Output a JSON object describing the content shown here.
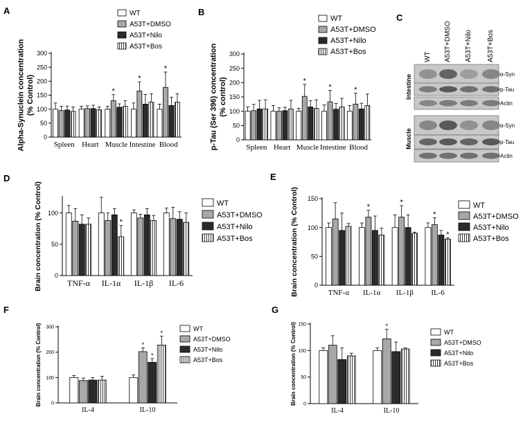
{
  "colors": {
    "WT": "#ffffff",
    "A53T+DMSO": "#a8a8a8",
    "A53T+Nilo": "#2b2b2b",
    "A53T+Bos": "#ffffff"
  },
  "chart_data": [
    {
      "id": "A",
      "type": "bar",
      "panel_label": "A",
      "ylabel": "Alpha-Synuclein concentration\n(% Control)",
      "ylim": [
        0,
        300
      ],
      "yticks": [
        0,
        50,
        100,
        150,
        200,
        250,
        300
      ],
      "categories": [
        "Spleen",
        "Heart",
        "Muscle",
        "Intestine",
        "Blood"
      ],
      "series": [
        {
          "name": "WT",
          "values": [
            100,
            100,
            100,
            100,
            100
          ],
          "errors": [
            22,
            10,
            10,
            22,
            18
          ]
        },
        {
          "name": "A53T+DMSO",
          "values": [
            95,
            102,
            130,
            165,
            178
          ],
          "errors": [
            15,
            10,
            22,
            33,
            55
          ]
        },
        {
          "name": "A53T+Nilo",
          "values": [
            97,
            102,
            107,
            118,
            113
          ],
          "errors": [
            14,
            12,
            12,
            35,
            30
          ]
        },
        {
          "name": "A53T+Bos",
          "values": [
            92,
            98,
            110,
            125,
            125
          ],
          "errors": [
            16,
            10,
            20,
            30,
            30
          ]
        }
      ],
      "significance": [
        {
          "category": "Muscle",
          "series": "A53T+DMSO"
        },
        {
          "category": "Intestine",
          "series": "A53T+DMSO"
        },
        {
          "category": "Blood",
          "series": "A53T+DMSO"
        }
      ],
      "legend": "top-right"
    },
    {
      "id": "B",
      "type": "bar",
      "panel_label": "B",
      "ylabel": "p-Tau (Ser 396) concentration\n(% control)",
      "ylim": [
        0,
        300
      ],
      "yticks": [
        0,
        50,
        100,
        150,
        200,
        250,
        300
      ],
      "categories": [
        "Spleen",
        "Heart",
        "Muscle",
        "Intestine",
        "Blood"
      ],
      "series": [
        {
          "name": "WT",
          "values": [
            100,
            100,
            100,
            100,
            100
          ],
          "errors": [
            15,
            20,
            10,
            22,
            20
          ]
        },
        {
          "name": "A53T+DMSO",
          "values": [
            102,
            100,
            152,
            133,
            125
          ],
          "errors": [
            22,
            12,
            42,
            40,
            38
          ]
        },
        {
          "name": "A53T+Nilo",
          "values": [
            108,
            102,
            115,
            107,
            108
          ],
          "errors": [
            30,
            12,
            22,
            20,
            20
          ]
        },
        {
          "name": "A53T+Bos",
          "values": [
            108,
            108,
            110,
            115,
            120
          ],
          "errors": [
            32,
            30,
            30,
            30,
            40
          ]
        }
      ],
      "significance": [
        {
          "category": "Muscle",
          "series": "A53T+DMSO"
        },
        {
          "category": "Intestine",
          "series": "A53T+DMSO"
        },
        {
          "category": "Blood",
          "series": "A53T+DMSO"
        }
      ],
      "legend": "top-right"
    },
    {
      "id": "D",
      "type": "bar",
      "panel_label": "D",
      "ylabel": "Brain concentration (% Control)",
      "ylim": [
        0,
        125
      ],
      "yticks": [
        0,
        50,
        100
      ],
      "categories": [
        "TNF-α",
        "IL-1α",
        "IL-1β",
        "IL-6"
      ],
      "series": [
        {
          "name": "WT",
          "values": [
            100,
            100,
            100,
            100
          ],
          "errors": [
            12,
            25,
            5,
            8
          ]
        },
        {
          "name": "A53T+DMSO",
          "values": [
            87,
            88,
            92,
            91
          ],
          "errors": [
            20,
            12,
            6,
            18
          ]
        },
        {
          "name": "A53T+Nilo",
          "values": [
            82,
            97,
            97,
            90
          ],
          "errors": [
            15,
            10,
            10,
            12
          ]
        },
        {
          "name": "A53T+Bos",
          "values": [
            82,
            62,
            88,
            85
          ],
          "errors": [
            10,
            18,
            8,
            15
          ]
        }
      ],
      "significance": [
        {
          "category": "IL-1α",
          "series": "A53T+Bos"
        }
      ],
      "legend": "right"
    },
    {
      "id": "E",
      "type": "bar",
      "panel_label": "E",
      "ylabel": "Brain concentration (% Control)",
      "ylim": [
        0,
        150
      ],
      "yticks": [
        0,
        50,
        100,
        150
      ],
      "categories": [
        "TNF-α",
        "IL-1α",
        "IL-1β",
        "IL-6"
      ],
      "series": [
        {
          "name": "WT",
          "values": [
            100,
            100,
            100,
            100
          ],
          "errors": [
            8,
            8,
            22,
            8
          ]
        },
        {
          "name": "A53T+DMSO",
          "values": [
            115,
            118,
            118,
            105
          ],
          "errors": [
            28,
            12,
            20,
            12
          ]
        },
        {
          "name": "A53T+Nilo",
          "values": [
            95,
            95,
            100,
            87
          ],
          "errors": [
            30,
            25,
            22,
            8
          ]
        },
        {
          "name": "A53T+Bos",
          "values": [
            102,
            87,
            90,
            80
          ],
          "errors": [
            5,
            12,
            2,
            2
          ]
        }
      ],
      "significance": [
        {
          "category": "IL-1α",
          "series": "A53T+DMSO"
        },
        {
          "category": "IL-1β",
          "series": "A53T+DMSO"
        },
        {
          "category": "IL-6",
          "series": "A53T+DMSO"
        },
        {
          "category": "IL-6",
          "series": "A53T+Bos"
        }
      ],
      "legend": "right"
    },
    {
      "id": "F",
      "type": "bar",
      "panel_label": "F",
      "ylabel": "Brain concentration (% Control)",
      "ylim": [
        0,
        300
      ],
      "yticks": [
        0,
        100,
        200,
        300
      ],
      "categories": [
        "IL-4",
        "IL-10"
      ],
      "series": [
        {
          "name": "WT",
          "values": [
            100,
            100
          ],
          "errors": [
            8,
            10
          ]
        },
        {
          "name": "A53T+DMSO",
          "values": [
            88,
            202
          ],
          "errors": [
            10,
            15
          ]
        },
        {
          "name": "A53T+Nilo",
          "values": [
            90,
            160
          ],
          "errors": [
            10,
            15
          ]
        },
        {
          "name": "A53T+Bos",
          "values": [
            90,
            228
          ],
          "errors": [
            15,
            35
          ]
        }
      ],
      "significance": [
        {
          "category": "IL-10",
          "series": "A53T+DMSO"
        },
        {
          "category": "IL-10",
          "series": "A53T+Nilo"
        },
        {
          "category": "IL-10",
          "series": "A53T+Bos"
        }
      ],
      "legend": "right"
    },
    {
      "id": "G",
      "type": "bar",
      "panel_label": "G",
      "ylabel": "Brain concentration (% Control)",
      "ylim": [
        0,
        150
      ],
      "yticks": [
        0,
        50,
        100,
        150
      ],
      "categories": [
        "IL-4",
        "IL-10"
      ],
      "series": [
        {
          "name": "WT",
          "values": [
            100,
            100
          ],
          "errors": [
            5,
            5
          ]
        },
        {
          "name": "A53T+DMSO",
          "values": [
            110,
            122
          ],
          "errors": [
            18,
            18
          ]
        },
        {
          "name": "A53T+Nilo",
          "values": [
            83,
            98
          ],
          "errors": [
            22,
            18
          ]
        },
        {
          "name": "A53T+Bos",
          "values": [
            90,
            103
          ],
          "errors": [
            5,
            2
          ]
        }
      ],
      "significance": [
        {
          "category": "IL-10",
          "series": "A53T+DMSO"
        }
      ],
      "legend": "right"
    }
  ],
  "blot": {
    "panel_label": "C",
    "lanes": [
      "WT",
      "A53T+DMSO",
      "A53T+Nilo",
      "A53T+Bos"
    ],
    "sections": [
      {
        "tissue": "Intestine",
        "bands": [
          "α-Syn",
          "p-Tau",
          "Actin"
        ]
      },
      {
        "tissue": "Muscle",
        "bands": [
          "α-Syn",
          "p-Tau",
          "Actin"
        ]
      }
    ]
  }
}
